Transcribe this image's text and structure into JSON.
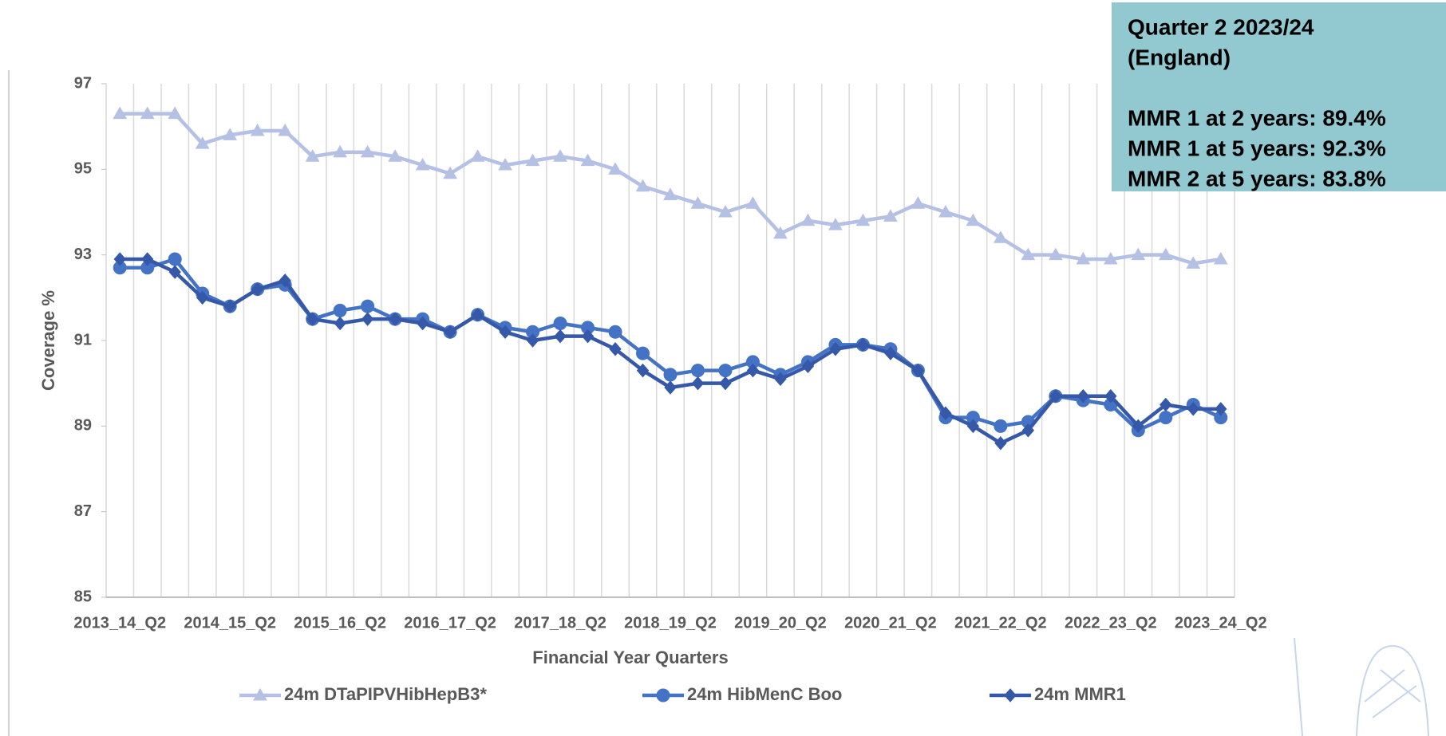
{
  "chart_data": {
    "type": "line",
    "y_label": "Coverage %",
    "x_label": "Financial  Year Quarters",
    "categories": [
      "2013_14_Q2",
      null,
      null,
      null,
      "2014_15_Q2",
      null,
      null,
      null,
      "2015_16_Q2",
      null,
      null,
      null,
      "2016_17_Q2",
      null,
      null,
      null,
      "2017_18_Q2",
      null,
      null,
      null,
      "2018_19_Q2",
      null,
      null,
      null,
      "2019_20_Q2",
      null,
      null,
      null,
      "2020_21_Q2",
      null,
      null,
      null,
      "2021_22_Q2",
      null,
      null,
      null,
      "2022_23_Q2",
      null,
      null,
      null,
      "2023_24_Q2"
    ],
    "ylim": [
      85,
      97
    ],
    "yticks": [
      85,
      87,
      89,
      91,
      93,
      95,
      97
    ],
    "series": [
      {
        "name": "24m DTaPIPVHibHepB3*",
        "color": "#b4c0e4",
        "marker": "triangle",
        "values": [
          96.3,
          96.3,
          96.3,
          95.6,
          95.8,
          95.9,
          95.9,
          95.3,
          95.4,
          95.4,
          95.3,
          95.1,
          94.9,
          95.3,
          95.1,
          95.2,
          95.3,
          95.2,
          95.0,
          94.6,
          94.4,
          94.2,
          94.0,
          94.2,
          93.5,
          93.8,
          93.7,
          93.8,
          93.9,
          94.2,
          94.0,
          93.8,
          93.4,
          93.0,
          93.0,
          92.9,
          92.9,
          93.0,
          93.0,
          92.8,
          92.9
        ]
      },
      {
        "name": "24m HibMenC Boo",
        "color": "#4472c4",
        "marker": "circle",
        "values": [
          92.7,
          92.7,
          92.9,
          92.1,
          91.8,
          92.2,
          92.3,
          91.5,
          91.7,
          91.8,
          91.5,
          91.5,
          91.2,
          91.6,
          91.3,
          91.2,
          91.4,
          91.3,
          91.2,
          90.7,
          90.2,
          90.3,
          90.3,
          90.5,
          90.2,
          90.5,
          90.9,
          90.9,
          90.8,
          90.3,
          89.2,
          89.2,
          89.0,
          89.1,
          89.7,
          89.6,
          89.5,
          88.9,
          89.2,
          89.5,
          89.2
        ]
      },
      {
        "name": "24m MMR1",
        "color": "#3558a8",
        "marker": "diamond",
        "values": [
          92.9,
          92.9,
          92.6,
          92.0,
          91.8,
          92.2,
          92.4,
          91.5,
          91.4,
          91.5,
          91.5,
          91.4,
          91.2,
          91.6,
          91.2,
          91.0,
          91.1,
          91.1,
          90.8,
          90.3,
          89.9,
          90.0,
          90.0,
          90.3,
          90.1,
          90.4,
          90.8,
          90.9,
          90.7,
          90.3,
          89.3,
          89.0,
          88.6,
          88.9,
          89.7,
          89.7,
          89.7,
          89.0,
          89.5,
          89.4,
          89.4
        ]
      }
    ]
  },
  "info_box": {
    "lines": [
      "Quarter 2 2023/24",
      "(England)",
      "MMR 1 at 2 years: 89.4%",
      "MMR 1 at 5 years: 92.3%",
      "MMR 2 at 5 years: 83.8%"
    ]
  }
}
